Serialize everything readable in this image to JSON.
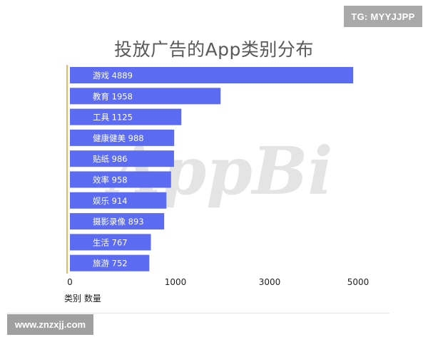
{
  "badges": {
    "top_right": "TG: MYYJJPP",
    "bottom_left": "www.znzxjj.com"
  },
  "watermark": "AppBi",
  "chart_data": {
    "type": "bar",
    "orientation": "horizontal",
    "title": "投放广告的App类别分布",
    "xlabel": "类别 数量",
    "ylabel": "",
    "categories": [
      "游戏",
      "教育",
      "工具",
      "健康健美",
      "贴纸",
      "效率",
      "娱乐",
      "摄影录像",
      "生活",
      "旅游"
    ],
    "values": [
      4889,
      1958,
      1125,
      988,
      986,
      958,
      914,
      893,
      767,
      752
    ],
    "data_labels": [
      "游戏 4889",
      "教育 1958",
      "工具 1125",
      "健康健美 988",
      "贴纸 986",
      "效率 958",
      "娱乐 914",
      "摄影录像 893",
      "生活 767",
      "旅游 752"
    ],
    "x_ticks": [
      "0",
      "1000",
      "3000",
      "5000"
    ],
    "x_tick_positions": [
      0,
      1000,
      3000,
      5000
    ],
    "xlim": [
      0,
      5000
    ],
    "x_scale": "piecewise",
    "grid": false,
    "legend": "none",
    "colors": {
      "bar": "#5b6cf2",
      "axis": "#e8a23c",
      "label": "#ffffff",
      "title": "#595959"
    }
  }
}
